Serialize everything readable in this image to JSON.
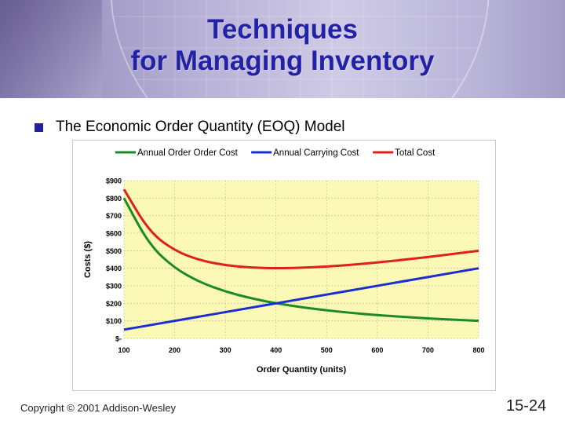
{
  "slide": {
    "title_line1": "Techniques",
    "title_line2": "for Managing Inventory",
    "bullet": "The Economic Order Quantity (EOQ) Model",
    "copyright": "Copyright © 2001 Addison-Wesley",
    "page_number": "15-24"
  },
  "chart_data": {
    "type": "line",
    "title": "",
    "xlabel": "Order Quantity (units)",
    "ylabel": "Costs ($)",
    "x": [
      100,
      150,
      200,
      250,
      300,
      350,
      400,
      450,
      500,
      550,
      600,
      650,
      700,
      750,
      800
    ],
    "x_ticks": [
      100,
      200,
      300,
      400,
      500,
      600,
      700,
      800
    ],
    "y_ticks": [
      0,
      100,
      200,
      300,
      400,
      500,
      600,
      700,
      800,
      900
    ],
    "y_tick_labels": [
      "$-",
      "$100",
      "$200",
      "$300",
      "$400",
      "$500",
      "$600",
      "$700",
      "$800",
      "$900"
    ],
    "xlim": [
      100,
      800
    ],
    "ylim": [
      0,
      900
    ],
    "grid": true,
    "legend_position": "top",
    "plot_background": "#fbf9b5",
    "series": [
      {
        "name": "Annual Order Order Cost",
        "color": "#1c8a2a",
        "values": [
          800,
          533,
          400,
          320,
          267,
          229,
          200,
          178,
          160,
          145,
          133,
          123,
          114,
          107,
          100
        ]
      },
      {
        "name": "Annual Carrying Cost",
        "color": "#1a2ed0",
        "values": [
          50,
          75,
          100,
          125,
          150,
          175,
          200,
          225,
          250,
          275,
          300,
          325,
          350,
          375,
          400
        ]
      },
      {
        "name": "Total Cost",
        "color": "#e0201a",
        "values": [
          850,
          608,
          500,
          445,
          417,
          404,
          400,
          403,
          410,
          420,
          433,
          448,
          464,
          482,
          500
        ]
      }
    ]
  }
}
